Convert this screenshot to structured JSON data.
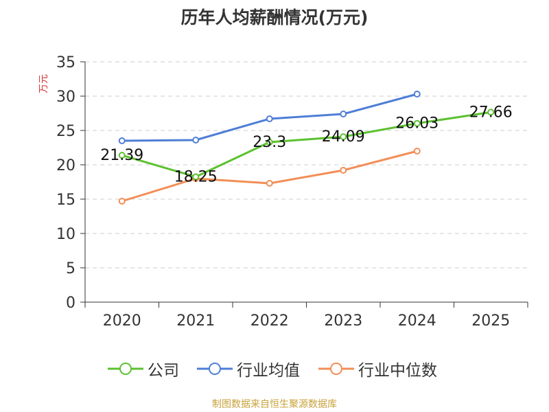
{
  "chart_data": {
    "type": "line",
    "title": "历年人均薪酬情况(万元)",
    "ylabel": "万元",
    "xlabel": "",
    "ylim": [
      0,
      35
    ],
    "yticks": [
      0,
      5,
      10,
      15,
      20,
      25,
      30,
      35
    ],
    "categories": [
      "2020",
      "2021",
      "2022",
      "2023",
      "2024",
      "2025"
    ],
    "grid": true,
    "legend_position": "bottom",
    "series": [
      {
        "name": "公司",
        "color": "#5cc130",
        "values": [
          21.39,
          18.25,
          23.3,
          24.09,
          26.03,
          27.66
        ],
        "labels": [
          "21.39",
          "18.25",
          "23.3",
          "24.09",
          "26.03",
          "27.66"
        ]
      },
      {
        "name": "行业均值",
        "color": "#4e7ed6",
        "values": [
          23.5,
          23.6,
          26.7,
          27.4,
          30.3,
          null
        ],
        "labels": []
      },
      {
        "name": "行业中位数",
        "color": "#f28e56",
        "values": [
          14.7,
          18.0,
          17.3,
          19.2,
          22.0,
          null
        ],
        "labels": []
      }
    ]
  },
  "source_text": "制图数据来自恒生聚源数据库",
  "source_color": "#c8a23a",
  "ylabel_color": "#d63b3b"
}
